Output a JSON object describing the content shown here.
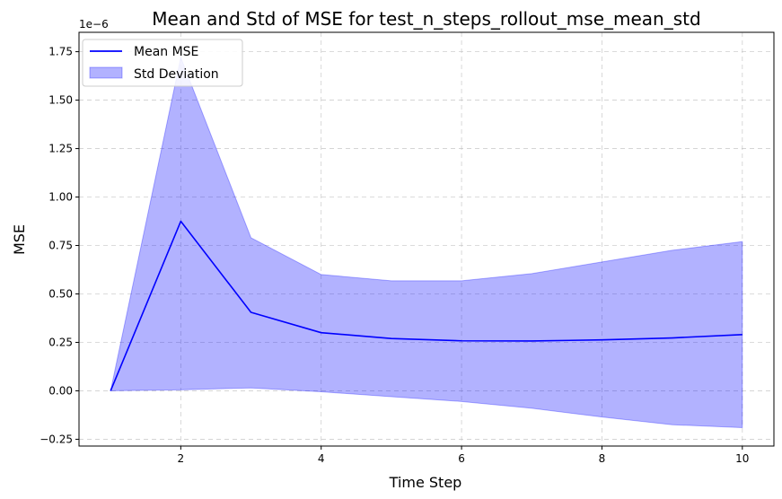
{
  "chart_data": {
    "type": "line",
    "title": "Mean and Std of MSE for test_n_steps_rollout_mse_mean_std",
    "xlabel": "Time Step",
    "ylabel": "MSE",
    "y_offset_text": "1e−6",
    "y_scale_factor": 1e-06,
    "xlim": [
      0.55,
      10.45
    ],
    "ylim": [
      -0.285,
      1.85
    ],
    "x_ticks": [
      2,
      4,
      6,
      8,
      10
    ],
    "y_ticks": [
      -0.25,
      0.0,
      0.25,
      0.5,
      0.75,
      1.0,
      1.25,
      1.5,
      1.75
    ],
    "x_tick_labels": [
      "2",
      "4",
      "6",
      "8",
      "10"
    ],
    "y_tick_labels": [
      "−0.25",
      "0.00",
      "0.25",
      "0.50",
      "0.75",
      "1.00",
      "1.25",
      "1.50",
      "1.75"
    ],
    "grid": true,
    "legend_position": "top-left",
    "x": [
      1,
      2,
      3,
      4,
      5,
      6,
      7,
      8,
      9,
      10
    ],
    "series": [
      {
        "name": "Mean MSE",
        "kind": "line",
        "color": "#0000ff",
        "values": [
          0.0,
          0.875,
          0.405,
          0.3,
          0.27,
          0.258,
          0.257,
          0.263,
          0.273,
          0.29
        ]
      },
      {
        "name": "Std Deviation",
        "kind": "band",
        "color": "#0000ff",
        "upper": [
          0.0,
          1.72,
          0.79,
          0.6,
          0.568,
          0.568,
          0.605,
          0.665,
          0.725,
          0.77
        ],
        "lower": [
          0.0,
          0.005,
          0.015,
          -0.005,
          -0.03,
          -0.055,
          -0.09,
          -0.135,
          -0.175,
          -0.19
        ]
      }
    ]
  }
}
